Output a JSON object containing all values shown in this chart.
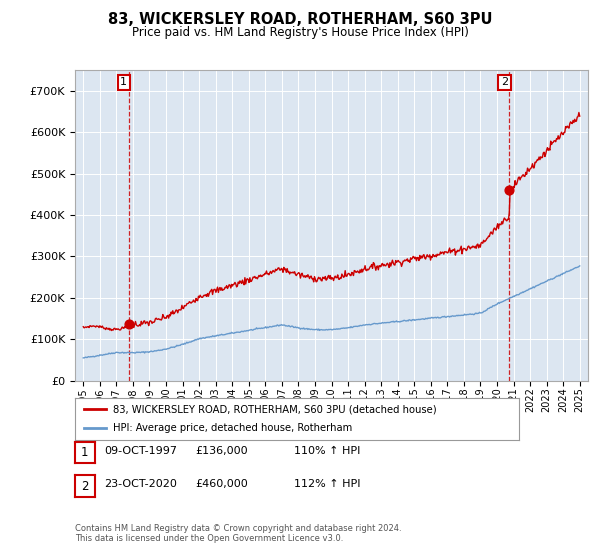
{
  "title1": "83, WICKERSLEY ROAD, ROTHERHAM, S60 3PU",
  "title2": "Price paid vs. HM Land Registry's House Price Index (HPI)",
  "bg_color": "#dce6f1",
  "red_line_color": "#cc0000",
  "blue_line_color": "#6699cc",
  "annotation1": {
    "label": "1",
    "date": "09-OCT-1997",
    "price": 136000,
    "pct": "110% ↑ HPI"
  },
  "annotation2": {
    "label": "2",
    "date": "23-OCT-2020",
    "price": 460000,
    "pct": "112% ↑ HPI"
  },
  "legend_red": "83, WICKERSLEY ROAD, ROTHERHAM, S60 3PU (detached house)",
  "legend_blue": "HPI: Average price, detached house, Rotherham",
  "footer": "Contains HM Land Registry data © Crown copyright and database right 2024.\nThis data is licensed under the Open Government Licence v3.0.",
  "ylim": [
    0,
    750000
  ],
  "yticks": [
    0,
    100000,
    200000,
    300000,
    400000,
    500000,
    600000,
    700000
  ],
  "ytick_labels": [
    "£0",
    "£100K",
    "£200K",
    "£300K",
    "£400K",
    "£500K",
    "£600K",
    "£700K"
  ],
  "t_buy1": 1997.75,
  "t_buy2": 2020.75,
  "price1": 136000,
  "price2": 460000,
  "xmin": 1995,
  "xmax": 2025
}
